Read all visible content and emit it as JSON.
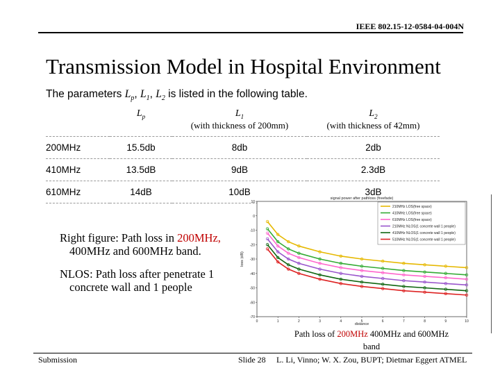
{
  "header": {
    "doc_id": "IEEE 802.15-12-0584-04-004N"
  },
  "title": "Transmission Model in Hospital Environment",
  "intro": {
    "before": "The parameters",
    "sym_lp": "L",
    "sub_p": "p",
    "comma1": ",",
    "sym_l1": "L",
    "sub_1": "1",
    "comma2": ",",
    "sym_l2": "L",
    "sub_2": "2",
    "after": "is listed in the following table."
  },
  "table": {
    "headers": [
      {
        "sym": "L",
        "sub": "p",
        "note": ""
      },
      {
        "sym": "L",
        "sub": "1",
        "note": "(with thickness of 200mm)"
      },
      {
        "sym": "L",
        "sub": "2",
        "note": "(with thickness of 42mm)"
      }
    ],
    "rows": [
      {
        "freq": "200MHz",
        "lp": "15.5db",
        "l1": "8db",
        "l2": "2db"
      },
      {
        "freq": "410MHz",
        "lp": "13.5dB",
        "l1": "9dB",
        "l2": "2.3dB"
      },
      {
        "freq": "610MHz",
        "lp": "14dB",
        "l1": "10dB",
        "l2": "3dB"
      }
    ]
  },
  "notes": {
    "p1_a": "Right figure: Path loss in ",
    "p1_red": "200MHz,",
    "p1_b": " 400MHz and 600MHz band.",
    "p2": "NLOS: Path loss after penetrate 1 concrete wall and 1 people"
  },
  "chart_data": {
    "type": "line",
    "title": "signal power after pathloss (freefade)",
    "xlabel": "distance",
    "ylabel": "loss (dB)",
    "xlim": [
      0,
      10
    ],
    "ylim": [
      -70,
      10
    ],
    "x_ticks": [
      "0",
      "1",
      "2",
      "3",
      "4",
      "5",
      "6",
      "7",
      "8",
      "9",
      "10"
    ],
    "y_ticks": [
      "10",
      "0",
      "-10",
      "-20",
      "-30",
      "-40",
      "-50",
      "-60",
      "-70"
    ],
    "legend_position": "top-right",
    "x": [
      0.5,
      1,
      1.5,
      2,
      3,
      4,
      5,
      6,
      7,
      8,
      9,
      10
    ],
    "series": [
      {
        "name": "210MHz LOS(free space)",
        "color": "#e6b800",
        "values": [
          -4,
          -13,
          -18,
          -21,
          -25,
          -28,
          -30,
          -31.5,
          -33,
          -34,
          -35,
          -36
        ]
      },
      {
        "name": "410MHz LOS(free space)",
        "color": "#33aa33",
        "values": [
          -9,
          -18,
          -23,
          -26,
          -30,
          -33,
          -35,
          -36.5,
          -38,
          -39,
          -40,
          -41
        ]
      },
      {
        "name": "610MHz LOS(free space)",
        "color": "#ff66cc",
        "values": [
          -12,
          -21,
          -26,
          -29,
          -33,
          -36,
          -38,
          -39.5,
          -41,
          -42,
          -43,
          -44
        ]
      },
      {
        "name": "210MHz NLOS(1 concrete wall 1 people)",
        "color": "#9955cc",
        "values": [
          -16,
          -25,
          -30,
          -33,
          -37,
          -40,
          -42,
          -43.5,
          -45,
          -46,
          -47,
          -48
        ]
      },
      {
        "name": "410MHz NLOS(1 concrete wall 1 people)",
        "color": "#116611",
        "values": [
          -20,
          -29,
          -34,
          -37,
          -41,
          -44,
          -46,
          -47.5,
          -49,
          -50,
          -51,
          -52
        ]
      },
      {
        "name": "510MHz NLOS(1 concrete wall 1 people)",
        "color": "#dd2222",
        "values": [
          -23,
          -32,
          -37,
          -40,
          -44,
          -47,
          -49,
          -50.5,
          -52,
          -53,
          -54,
          -55
        ]
      }
    ]
  },
  "caption": {
    "a": "Path loss of ",
    "red": "200MHz",
    "b": " 400MHz and 600MHz band"
  },
  "footer": {
    "left": "Submission",
    "slide": "Slide 28",
    "authors": "L. Li, Vinno; W. X. Zou, BUPT; Dietmar Eggert ATMEL"
  }
}
